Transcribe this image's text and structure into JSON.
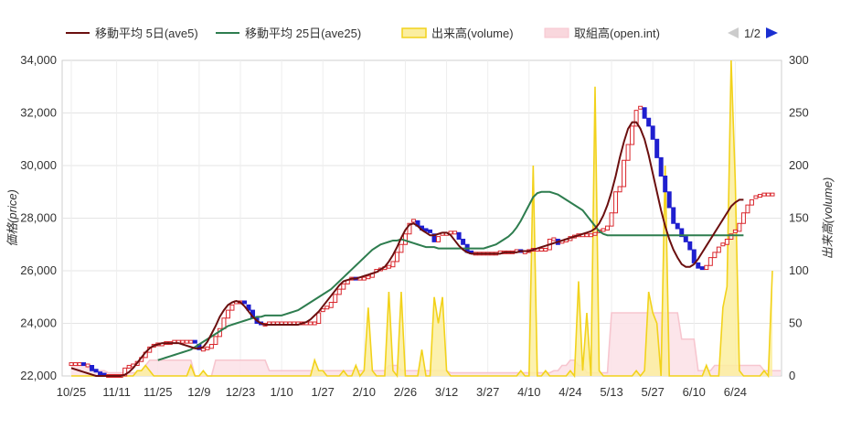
{
  "legend": [
    {
      "key": "ave5",
      "label": "移動平均 5日(ave5)",
      "color": "#6b0f0f"
    },
    {
      "key": "ave25",
      "label": "移動平均 25日(ave25)",
      "color": "#2e7d4f"
    },
    {
      "key": "volume",
      "label": "出来高(volume)",
      "color": "#f2d21b"
    },
    {
      "key": "oi",
      "label": "取組高(open.int)",
      "color": "#f7c6cf"
    }
  ],
  "pager": {
    "text": "1/2",
    "prev_icon": "triangle-left-icon",
    "next_icon": "triangle-right-icon",
    "prev_color": "#cccccc",
    "next_color": "#1a2fd1"
  },
  "chart_data": {
    "type": "candlestick-with-volume",
    "xlabel": "",
    "ylabel": "価格(price)",
    "y2label": "出来高(volume)",
    "ylim": [
      22000,
      34000
    ],
    "y2lim": [
      0,
      300
    ],
    "yticks": [
      22000,
      24000,
      26000,
      28000,
      30000,
      32000,
      34000
    ],
    "yticklabels": [
      "22,000",
      "24,000",
      "26,000",
      "28,000",
      "30,000",
      "32,000",
      "34,000"
    ],
    "y2ticks": [
      0,
      50,
      100,
      150,
      200,
      250,
      300
    ],
    "grid": true,
    "legend_position": "top",
    "colors": {
      "up": "#d9262c",
      "down": "#1f1fcf",
      "ave5": "#6b0f0f",
      "ave25": "#2e7d4f",
      "volume_line": "#f2d21b",
      "volume_fill": "#fbeea0",
      "oi_line": "#f7c6cf",
      "oi_fill": "#fbe1e6"
    },
    "xticks": [
      {
        "label": "10/25",
        "i": 0
      },
      {
        "label": "11/11",
        "i": 11
      },
      {
        "label": "11/25",
        "i": 21
      },
      {
        "label": "12/9",
        "i": 31
      },
      {
        "label": "12/23",
        "i": 41
      },
      {
        "label": "1/10",
        "i": 51
      },
      {
        "label": "1/27",
        "i": 61
      },
      {
        "label": "2/10",
        "i": 71
      },
      {
        "label": "2/26",
        "i": 81
      },
      {
        "label": "3/12",
        "i": 91
      },
      {
        "label": "3/27",
        "i": 101
      },
      {
        "label": "4/10",
        "i": 111
      },
      {
        "label": "4/24",
        "i": 121
      },
      {
        "label": "5/13",
        "i": 131
      },
      {
        "label": "5/27",
        "i": 141
      },
      {
        "label": "6/10",
        "i": 151
      },
      {
        "label": "6/24",
        "i": 161
      }
    ],
    "n": 171,
    "close": [
      22450,
      22450,
      22450,
      22400,
      22400,
      22200,
      22100,
      22050,
      22000,
      22000,
      22000,
      22000,
      22000,
      22300,
      22350,
      22400,
      22550,
      22700,
      22900,
      23100,
      23150,
      23200,
      23200,
      23250,
      23250,
      23300,
      23300,
      23300,
      23300,
      23300,
      23200,
      23000,
      23000,
      23050,
      23200,
      23500,
      23800,
      24200,
      24500,
      24700,
      24800,
      24800,
      24700,
      24500,
      24200,
      24000,
      23900,
      23950,
      24000,
      24000,
      24000,
      24000,
      24000,
      24000,
      24000,
      24000,
      24000,
      24000,
      24000,
      24000,
      24400,
      24500,
      24600,
      24800,
      25100,
      25300,
      25500,
      25650,
      25700,
      25650,
      25700,
      25700,
      25750,
      25900,
      26000,
      26050,
      26100,
      26150,
      26350,
      26700,
      27000,
      27400,
      27800,
      27900,
      27700,
      27550,
      27500,
      27400,
      27100,
      27300,
      27400,
      27400,
      27450,
      27450,
      27200,
      27000,
      26700,
      26650,
      26650,
      26650,
      26650,
      26650,
      26650,
      26650,
      26700,
      26700,
      26700,
      26700,
      26750,
      26700,
      26700,
      26750,
      26800,
      26800,
      26800,
      26800,
      27200,
      27200,
      27000,
      27100,
      27150,
      27300,
      27300,
      27350,
      27350,
      27350,
      27350,
      27400,
      27500,
      27550,
      27700,
      28200,
      29000,
      29200,
      30200,
      30800,
      31500,
      32100,
      32200,
      31800,
      31500,
      31000,
      30300,
      29600,
      29000,
      28400,
      27800,
      27600,
      27300,
      27100,
      26800,
      26300,
      26100,
      26050,
      26200,
      26500,
      26700,
      26900,
      27000,
      27200,
      27400,
      27500,
      27800,
      28200,
      28500,
      28700,
      28800,
      28850,
      28900,
      28900,
      28900
    ],
    "ave5": [
      22300,
      22250,
      22200,
      22150,
      22100,
      22050,
      22000,
      22000,
      22000,
      22000,
      22000,
      22000,
      22000,
      22050,
      22150,
      22300,
      22500,
      22700,
      22900,
      23050,
      23150,
      23200,
      23250,
      23250,
      23250,
      23250,
      23250,
      23200,
      23150,
      23100,
      23050,
      23050,
      23100,
      23300,
      23600,
      23900,
      24250,
      24500,
      24700,
      24800,
      24850,
      24800,
      24650,
      24450,
      24250,
      24100,
      24000,
      23950,
      23950,
      23950,
      23950,
      23950,
      23950,
      23950,
      23950,
      23950,
      24000,
      24050,
      24150,
      24300,
      24450,
      24650,
      24850,
      25050,
      25250,
      25450,
      25600,
      25650,
      25700,
      25700,
      25750,
      25800,
      25850,
      25900,
      25950,
      26050,
      26150,
      26350,
      26600,
      26900,
      27250,
      27550,
      27750,
      27800,
      27700,
      27550,
      27450,
      27350,
      27350,
      27400,
      27450,
      27450,
      27350,
      27150,
      26950,
      26800,
      26700,
      26650,
      26650,
      26650,
      26650,
      26650,
      26650,
      26650,
      26650,
      26700,
      26700,
      26700,
      26700,
      26750,
      26750,
      26750,
      26800,
      26850,
      26900,
      26950,
      27000,
      27050,
      27100,
      27150,
      27200,
      27250,
      27300,
      27350,
      27400,
      27450,
      27500,
      27600,
      27800,
      28100,
      28500,
      29000,
      29600,
      30300,
      30900,
      31400,
      31650,
      31650,
      31400,
      31000,
      30400,
      29700,
      29000,
      28300,
      27700,
      27200,
      26800,
      26500,
      26250,
      26150,
      26150,
      26250,
      26450,
      26700,
      26950,
      27200,
      27450,
      27700,
      27950,
      28200,
      28450,
      28600,
      28700,
      28700
    ],
    "ave25": [
      null,
      null,
      null,
      null,
      null,
      null,
      null,
      null,
      null,
      null,
      null,
      null,
      null,
      null,
      null,
      null,
      null,
      null,
      null,
      null,
      null,
      22600,
      22650,
      22700,
      22750,
      22800,
      22850,
      22900,
      22950,
      23000,
      23100,
      23200,
      23300,
      23400,
      23500,
      23600,
      23700,
      23800,
      23900,
      23950,
      24000,
      24050,
      24100,
      24150,
      24200,
      24250,
      24250,
      24300,
      24300,
      24300,
      24300,
      24300,
      24350,
      24400,
      24450,
      24500,
      24600,
      24700,
      24800,
      24900,
      25000,
      25100,
      25200,
      25300,
      25450,
      25600,
      25750,
      25900,
      26050,
      26200,
      26350,
      26500,
      26650,
      26800,
      26900,
      27000,
      27050,
      27100,
      27150,
      27150,
      27200,
      27150,
      27100,
      27050,
      27000,
      26950,
      26900,
      26900,
      26900,
      26850,
      26850,
      26850,
      26850,
      26850,
      26850,
      26850,
      26850,
      26850,
      26850,
      26850,
      26850,
      26900,
      26950,
      27000,
      27100,
      27200,
      27300,
      27450,
      27650,
      27900,
      28200,
      28500,
      28800,
      28950,
      29000,
      29000,
      29000,
      28950,
      28900,
      28800,
      28700,
      28600,
      28500,
      28400,
      28300,
      28100,
      27900,
      27700,
      27500,
      27400,
      27350,
      27350,
      27350,
      27350,
      27350,
      27350,
      27350,
      27350,
      27350,
      27350,
      27350,
      27350,
      27350,
      27350,
      27350,
      27350,
      27350,
      27350,
      27350,
      27350,
      27350,
      27350,
      27350,
      27350,
      27350,
      27350,
      27350,
      27350,
      27350,
      27350,
      27350,
      27350,
      27350,
      27350
    ],
    "volume": [
      0,
      0,
      0,
      0,
      0,
      0,
      0,
      0,
      0,
      0,
      0,
      0,
      0,
      0,
      0,
      0,
      5,
      5,
      10,
      5,
      0,
      0,
      0,
      0,
      0,
      0,
      0,
      0,
      0,
      10,
      0,
      0,
      5,
      0,
      0,
      0,
      0,
      0,
      0,
      0,
      0,
      0,
      0,
      0,
      0,
      0,
      0,
      0,
      0,
      0,
      0,
      0,
      0,
      0,
      0,
      0,
      0,
      0,
      0,
      15,
      5,
      5,
      0,
      0,
      0,
      0,
      5,
      0,
      0,
      10,
      0,
      5,
      65,
      5,
      0,
      0,
      0,
      80,
      5,
      0,
      80,
      0,
      0,
      0,
      0,
      25,
      0,
      0,
      75,
      50,
      75,
      5,
      0,
      0,
      0,
      0,
      0,
      0,
      0,
      0,
      0,
      0,
      0,
      0,
      0,
      0,
      0,
      0,
      0,
      5,
      0,
      0,
      200,
      0,
      0,
      5,
      0,
      0,
      0,
      0,
      0,
      5,
      0,
      90,
      5,
      60,
      0,
      275,
      5,
      0,
      0,
      0,
      0,
      0,
      0,
      0,
      0,
      5,
      0,
      5,
      80,
      60,
      50,
      0,
      200,
      0,
      0,
      0,
      0,
      0,
      0,
      0,
      0,
      0,
      10,
      0,
      0,
      0,
      65,
      85,
      300,
      185,
      5,
      0,
      0,
      0,
      0,
      0,
      5,
      0,
      100
    ],
    "oi": [
      12,
      12,
      12,
      12,
      8,
      5,
      5,
      5,
      5,
      3,
      3,
      3,
      3,
      3,
      3,
      3,
      3,
      5,
      10,
      15,
      15,
      15,
      15,
      15,
      15,
      15,
      15,
      15,
      15,
      15,
      0,
      0,
      0,
      0,
      0,
      15,
      15,
      15,
      15,
      15,
      15,
      15,
      15,
      15,
      15,
      15,
      15,
      15,
      5,
      5,
      5,
      5,
      5,
      5,
      5,
      5,
      5,
      5,
      5,
      5,
      5,
      5,
      5,
      5,
      5,
      5,
      5,
      5,
      5,
      5,
      5,
      5,
      5,
      5,
      5,
      5,
      5,
      10,
      10,
      10,
      5,
      5,
      5,
      5,
      5,
      5,
      5,
      5,
      5,
      5,
      5,
      5,
      3,
      3,
      3,
      3,
      3,
      3,
      3,
      3,
      3,
      3,
      3,
      3,
      3,
      3,
      3,
      3,
      3,
      3,
      3,
      3,
      3,
      3,
      3,
      3,
      3,
      5,
      5,
      10,
      10,
      15,
      15,
      10,
      10,
      3,
      3,
      3,
      3,
      3,
      3,
      60,
      60,
      60,
      60,
      60,
      60,
      60,
      60,
      60,
      60,
      60,
      60,
      60,
      60,
      60,
      60,
      60,
      35,
      35,
      35,
      35,
      5,
      5,
      5,
      5,
      10,
      10,
      10,
      10,
      10,
      10,
      10,
      10,
      10,
      10,
      10,
      10,
      5,
      5,
      5,
      5,
      5
    ]
  }
}
